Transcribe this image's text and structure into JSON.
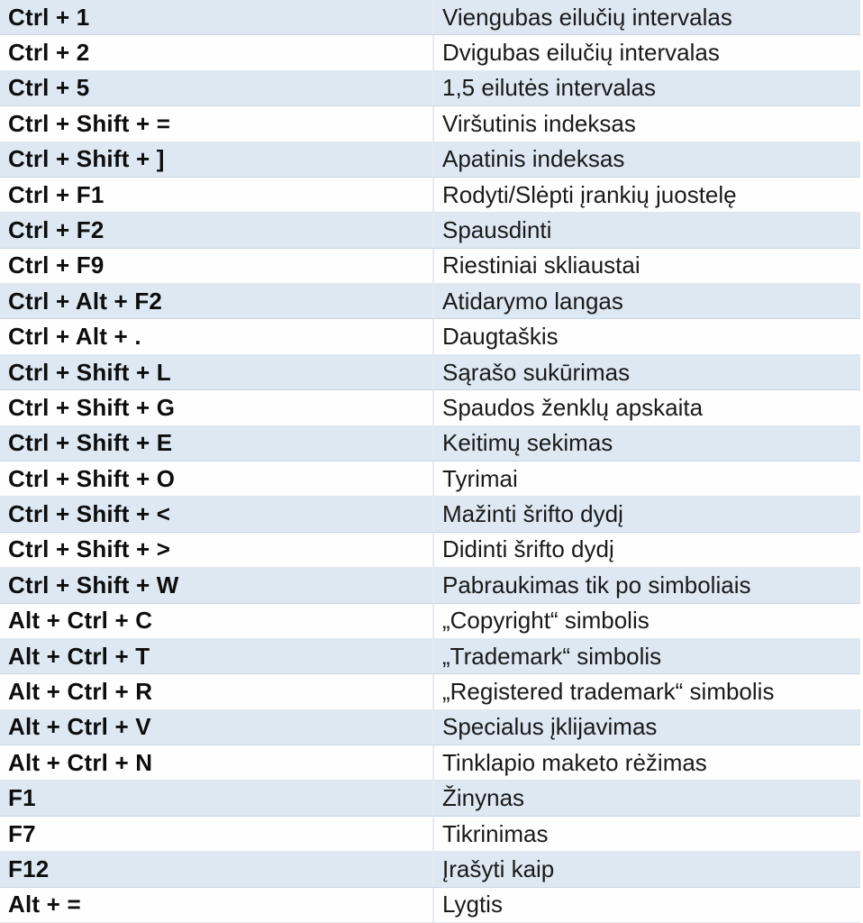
{
  "table": {
    "columns": [
      "shortcut",
      "description"
    ],
    "rows": [
      {
        "shortcut": "Ctrl + 1",
        "description": "Viengubas eilučių intervalas"
      },
      {
        "shortcut": "Ctrl + 2",
        "description": "Dvigubas eilučių intervalas"
      },
      {
        "shortcut": "Ctrl + 5",
        "description": "1,5 eilutės intervalas"
      },
      {
        "shortcut": "Ctrl + Shift + =",
        "description": "Viršutinis indeksas"
      },
      {
        "shortcut": "Ctrl + Shift + ]",
        "description": "Apatinis indeksas"
      },
      {
        "shortcut": "Ctrl + F1",
        "description": "Rodyti/Slėpti įrankių juostelę"
      },
      {
        "shortcut": "Ctrl + F2",
        "description": "Spausdinti"
      },
      {
        "shortcut": "Ctrl + F9",
        "description": "Riestiniai skliaustai"
      },
      {
        "shortcut": "Ctrl + Alt + F2",
        "description": "Atidarymo langas"
      },
      {
        "shortcut": "Ctrl + Alt + .",
        "description": "Daugtaškis"
      },
      {
        "shortcut": "Ctrl + Shift + L",
        "description": "Sąrašo sukūrimas"
      },
      {
        "shortcut": "Ctrl + Shift + G",
        "description": "Spaudos ženklų apskaita"
      },
      {
        "shortcut": "Ctrl + Shift + E",
        "description": "Keitimų sekimas"
      },
      {
        "shortcut": "Ctrl + Shift + O",
        "description": "Tyrimai"
      },
      {
        "shortcut": "Ctrl + Shift + <",
        "description": "Mažinti šrifto dydį"
      },
      {
        "shortcut": "Ctrl + Shift + >",
        "description": "Didinti šrifto dydį"
      },
      {
        "shortcut": "Ctrl + Shift + W",
        "description": "Pabraukimas tik po simboliais"
      },
      {
        "shortcut": "Alt + Ctrl + C",
        "description": "„Copyright“ simbolis"
      },
      {
        "shortcut": "Alt + Ctrl + T",
        "description": "„Trademark“ simbolis"
      },
      {
        "shortcut": "Alt + Ctrl + R",
        "description": "„Registered trademark“ simbolis"
      },
      {
        "shortcut": "Alt + Ctrl + V",
        "description": "Specialus įklijavimas"
      },
      {
        "shortcut": "Alt + Ctrl + N",
        "description": "Tinklapio maketo rėžimas"
      },
      {
        "shortcut": "F1",
        "description": "Žinynas"
      },
      {
        "shortcut": "F7",
        "description": "Tikrinimas"
      },
      {
        "shortcut": "F12",
        "description": "Įrašyti kaip"
      },
      {
        "shortcut": "Alt + =",
        "description": "Lygtis"
      }
    ]
  },
  "colors": {
    "row_alt": "#dde8f3",
    "row_base": "#fefefe",
    "divider": "#e7ecf2",
    "key_text": "#0d0d0d",
    "desc_text": "#1a1a1a"
  }
}
